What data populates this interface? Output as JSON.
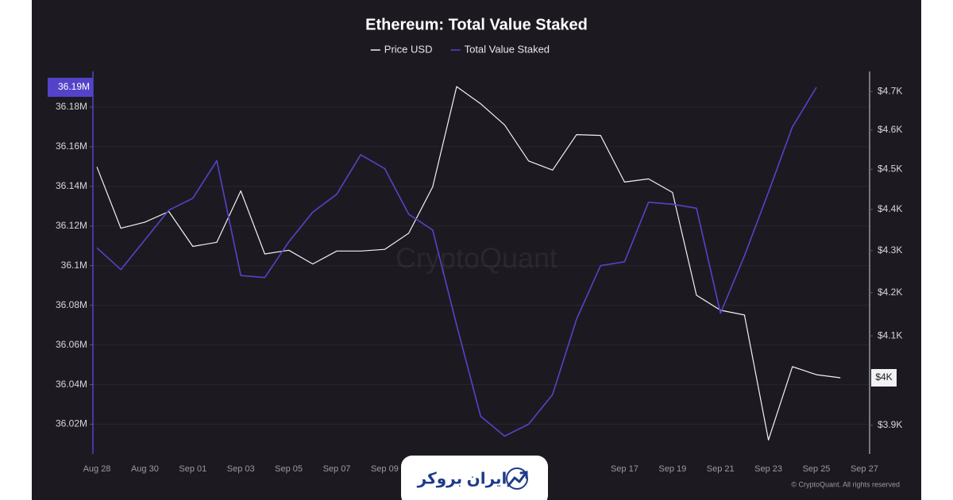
{
  "chart_data": {
    "type": "line",
    "title": "Ethereum: Total Value Staked",
    "categories": [
      "Aug 28",
      null,
      "Aug 30",
      null,
      "Sep 01",
      null,
      "Sep 03",
      null,
      "Sep 05",
      null,
      "Sep 07",
      null,
      "Sep 09",
      null,
      null,
      null,
      null,
      null,
      null,
      null,
      null,
      null,
      "Sep 17",
      null,
      "Sep 19",
      null,
      "Sep 21",
      null,
      "Sep 23",
      null,
      "Sep 25",
      null,
      "Sep 27",
      null
    ],
    "series": [
      {
        "name": "Price USD",
        "color": "#f2f2f5",
        "axis": "y2",
        "values": [
          4506,
          4354,
          4369,
          4395,
          4310,
          4320,
          4446,
          4292,
          4301,
          4268,
          4299,
          4299,
          4303,
          4342,
          4456,
          4713,
          4668,
          4613,
          4521,
          4498,
          4588,
          4586,
          4468,
          4476,
          4442,
          4194,
          4159,
          4148,
          3868,
          4030,
          4012,
          4005,
          null,
          null
        ],
        "value_labels": [
          null,
          null,
          null,
          null,
          null,
          null,
          null,
          null,
          null,
          null,
          null,
          null,
          null,
          null,
          null,
          null,
          null,
          null,
          null,
          null,
          null,
          null,
          null,
          null,
          null,
          null,
          null,
          null,
          null,
          null,
          null,
          "$4K",
          null,
          null
        ]
      },
      {
        "name": "Total Value Staked",
        "color": "#5443c9",
        "values": [
          36109000,
          36098000,
          36113000,
          36128000,
          36134000,
          36153000,
          36095000,
          36094000,
          36112000,
          36127000,
          36136000,
          36156000,
          36149000,
          36126000,
          36118000,
          36070000,
          36024000,
          36014000,
          36020000,
          36035000,
          36073000,
          36100000,
          36102000,
          36132000,
          36131000,
          36129000,
          36076000,
          36105000,
          36137000,
          36170000,
          36190000,
          null,
          null,
          null
        ],
        "value_labels": [
          null,
          null,
          null,
          null,
          null,
          null,
          null,
          null,
          null,
          null,
          null,
          null,
          null,
          null,
          null,
          null,
          null,
          null,
          null,
          null,
          null,
          null,
          null,
          null,
          null,
          null,
          null,
          null,
          null,
          null,
          "36.19M",
          null,
          null,
          null
        ]
      }
    ],
    "ylim": [
      36005000,
      36198000
    ],
    "yticks": [
      {
        "value": 36020000,
        "label": "36.02M"
      },
      {
        "value": 36040000,
        "label": "36.04M"
      },
      {
        "value": 36060000,
        "label": "36.06M"
      },
      {
        "value": 36080000,
        "label": "36.08M"
      },
      {
        "value": 36100000,
        "label": "36.1M"
      },
      {
        "value": 36120000,
        "label": "36.12M"
      },
      {
        "value": 36140000,
        "label": "36.14M"
      },
      {
        "value": 36160000,
        "label": "36.16M"
      },
      {
        "value": 36180000,
        "label": "36.18M"
      }
    ],
    "y2lim": [
      3838,
      4753
    ],
    "y2scale": "log",
    "y2ticks": [
      {
        "value": 3900,
        "label": "$3.9K"
      },
      {
        "value": 4100,
        "label": "$4.1K"
      },
      {
        "value": 4200,
        "label": "$4.2K"
      },
      {
        "value": 4300,
        "label": "$4.3K"
      },
      {
        "value": 4400,
        "label": "$4.4K"
      },
      {
        "value": 4500,
        "label": "$4.5K"
      },
      {
        "value": 4600,
        "label": "$4.6K"
      },
      {
        "value": 4700,
        "label": "$4.7K"
      }
    ],
    "grid": true,
    "legend": "top",
    "watermark": "CryptoQuant",
    "copyright": "© CryptoQuant. All rights reserved"
  },
  "logo": {
    "text": "ایران بروکر"
  }
}
